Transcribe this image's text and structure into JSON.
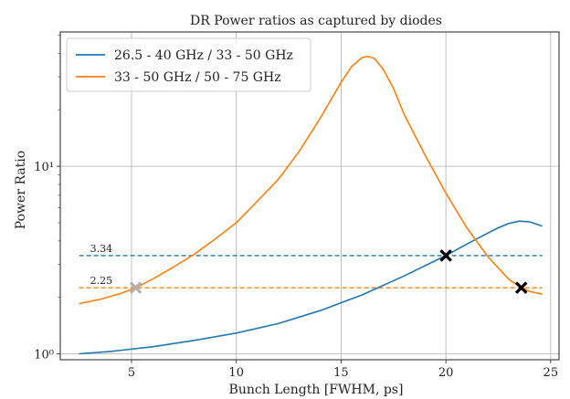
{
  "chart_data": {
    "type": "line",
    "title": "DR Power ratios as captured by diodes",
    "xlabel": "Bunch Length [FWHM, ps]",
    "ylabel": "Power Ratio",
    "xlim": [
      1.6,
      25.4
    ],
    "ylim": [
      0.93,
      52
    ],
    "yscale": "log",
    "grid": true,
    "legend_position": "top-left",
    "x_ticks": [
      5,
      10,
      15,
      20,
      25
    ],
    "x_tick_labels": [
      "5",
      "10",
      "15",
      "20",
      "25"
    ],
    "y_ticks": [
      1,
      10
    ],
    "y_tick_labels": [
      "10⁰",
      "10¹"
    ],
    "series": [
      {
        "name": "26.5 - 40 GHz / 33 - 50 GHz",
        "color": "#1f77b4",
        "x": [
          2.5,
          4,
          6,
          8,
          10,
          12,
          14,
          16,
          18,
          20,
          21,
          22,
          22.5,
          23,
          23.5,
          24,
          24.6
        ],
        "y": [
          1.0,
          1.03,
          1.09,
          1.18,
          1.29,
          1.45,
          1.7,
          2.06,
          2.6,
          3.34,
          3.85,
          4.4,
          4.7,
          4.95,
          5.1,
          5.05,
          4.8
        ]
      },
      {
        "name": "33 - 50 GHz / 50 - 75 GHz",
        "color": "#ff7f0e",
        "x": [
          2.5,
          3.5,
          4.5,
          5.2,
          6,
          7,
          8,
          9,
          10,
          11,
          12,
          13,
          14,
          15,
          15.5,
          16,
          16.3,
          16.6,
          17,
          17.5,
          18,
          19,
          20,
          21,
          22,
          23,
          23.6,
          24,
          24.6
        ],
        "y": [
          1.85,
          1.95,
          2.1,
          2.25,
          2.5,
          2.9,
          3.4,
          4.1,
          5.0,
          6.5,
          8.5,
          12,
          18,
          28,
          34,
          38,
          38.5,
          37.5,
          33,
          26,
          19,
          11.5,
          7.2,
          4.7,
          3.3,
          2.5,
          2.25,
          2.15,
          2.08
        ]
      }
    ],
    "reference_lines": [
      {
        "value": 3.34,
        "label": "3.34",
        "color": "#1f77b4",
        "x_start": 2.5,
        "x_end": 24.6
      },
      {
        "value": 2.25,
        "label": "2.25",
        "color": "#ff7f0e",
        "x_start": 2.5,
        "x_end": 24.6
      }
    ],
    "markers": [
      {
        "x": 5.2,
        "y": 2.25,
        "color": "#b0b0b0"
      },
      {
        "x": 20.0,
        "y": 3.34,
        "color": "#000000"
      },
      {
        "x": 23.6,
        "y": 2.25,
        "color": "#000000"
      }
    ]
  }
}
